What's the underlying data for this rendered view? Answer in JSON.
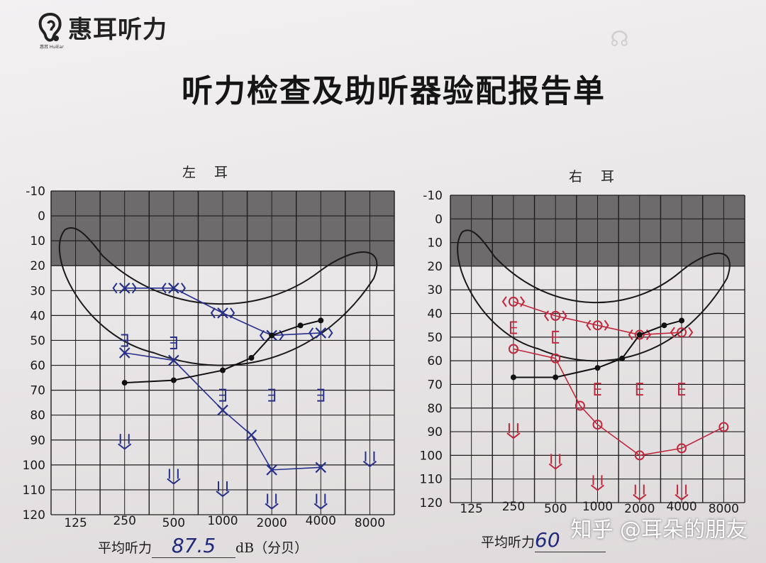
{
  "brand": {
    "name": "惠耳听力",
    "sub": "惠耳 HuiEar"
  },
  "title": "听力检查及助听器验配报告单",
  "watermark": "知乎 @耳朵的朋友",
  "average": {
    "label": "平均听力",
    "left_value": "87.5",
    "right_value": "60",
    "unit": "dB（分贝）"
  },
  "charts": [
    {
      "ear": "左 耳",
      "frequencies": [
        "125",
        "250",
        "500",
        "1000",
        "2000",
        "4000",
        "8000"
      ],
      "db_ticks": [
        "-10",
        "0",
        "10",
        "20",
        "30",
        "40",
        "50",
        "60",
        "70",
        "80",
        "90",
        "100",
        "110",
        "120"
      ],
      "colors": {
        "ink": "#26308c",
        "pencil": "#7a2a3a"
      }
    },
    {
      "ear": "右 耳",
      "frequencies": [
        "125",
        "250",
        "500",
        "1000",
        "2000",
        "4000",
        "8000"
      ],
      "db_ticks": [
        "-10",
        "0",
        "10",
        "20",
        "30",
        "40",
        "50",
        "60",
        "70",
        "80",
        "90",
        "100",
        "110",
        "120"
      ],
      "colors": {
        "ink": "#c0283c"
      }
    }
  ],
  "chart_data": [
    {
      "type": "line",
      "title": "左 耳",
      "xlabel": "",
      "ylabel": "",
      "x_scale": "log2",
      "xlim": [
        125,
        8000
      ],
      "ylim": [
        -10,
        120
      ],
      "y_inverted": true,
      "shaded_band": [
        -10,
        20
      ],
      "series": [
        {
          "marker": "<x>",
          "x": [
            250,
            500,
            1000,
            2000,
            4000
          ],
          "y": [
            29,
            29,
            39,
            48,
            47
          ]
        },
        {
          "marker": "x",
          "x": [
            250,
            500,
            1000,
            1500,
            2000,
            4000
          ],
          "y": [
            55,
            58,
            78,
            88,
            102,
            101
          ]
        },
        {
          "marker": "dot",
          "x": [
            250,
            500,
            1000,
            1500,
            2000,
            3000,
            4000
          ],
          "y": [
            67,
            66,
            62,
            57,
            48,
            44,
            42
          ]
        },
        {
          "marker": "]",
          "x": [
            250,
            500,
            1000,
            2000,
            4000
          ],
          "y": [
            50,
            51,
            72,
            72,
            72
          ]
        },
        {
          "marker": "arrow",
          "x": [
            250,
            500,
            1000,
            2000,
            4000,
            8000
          ],
          "y": [
            91,
            105,
            110,
            115,
            115,
            98
          ]
        }
      ]
    },
    {
      "type": "line",
      "title": "右 耳",
      "xlabel": "",
      "ylabel": "",
      "x_scale": "log2",
      "xlim": [
        125,
        8000
      ],
      "ylim": [
        -10,
        120
      ],
      "y_inverted": true,
      "shaded_band": [
        -10,
        20
      ],
      "series": [
        {
          "marker": "<o>",
          "x": [
            250,
            500,
            1000,
            2000,
            4000
          ],
          "y": [
            35,
            41,
            45,
            49,
            48
          ]
        },
        {
          "marker": "o",
          "x": [
            250,
            500,
            750,
            1000,
            2000,
            4000,
            8000
          ],
          "y": [
            55,
            59,
            79,
            87,
            100,
            97,
            88
          ]
        },
        {
          "marker": "dot",
          "x": [
            250,
            500,
            1000,
            1500,
            2000,
            3000,
            4000
          ],
          "y": [
            67,
            67,
            63,
            59,
            49,
            45,
            43
          ]
        },
        {
          "marker": "[",
          "x": [
            250,
            500,
            1000,
            2000,
            4000
          ],
          "y": [
            46,
            50,
            72,
            72,
            72
          ]
        },
        {
          "marker": "arrow",
          "x": [
            250,
            500,
            1000,
            2000,
            4000
          ],
          "y": [
            90,
            103,
            112,
            116,
            116
          ]
        }
      ]
    }
  ]
}
